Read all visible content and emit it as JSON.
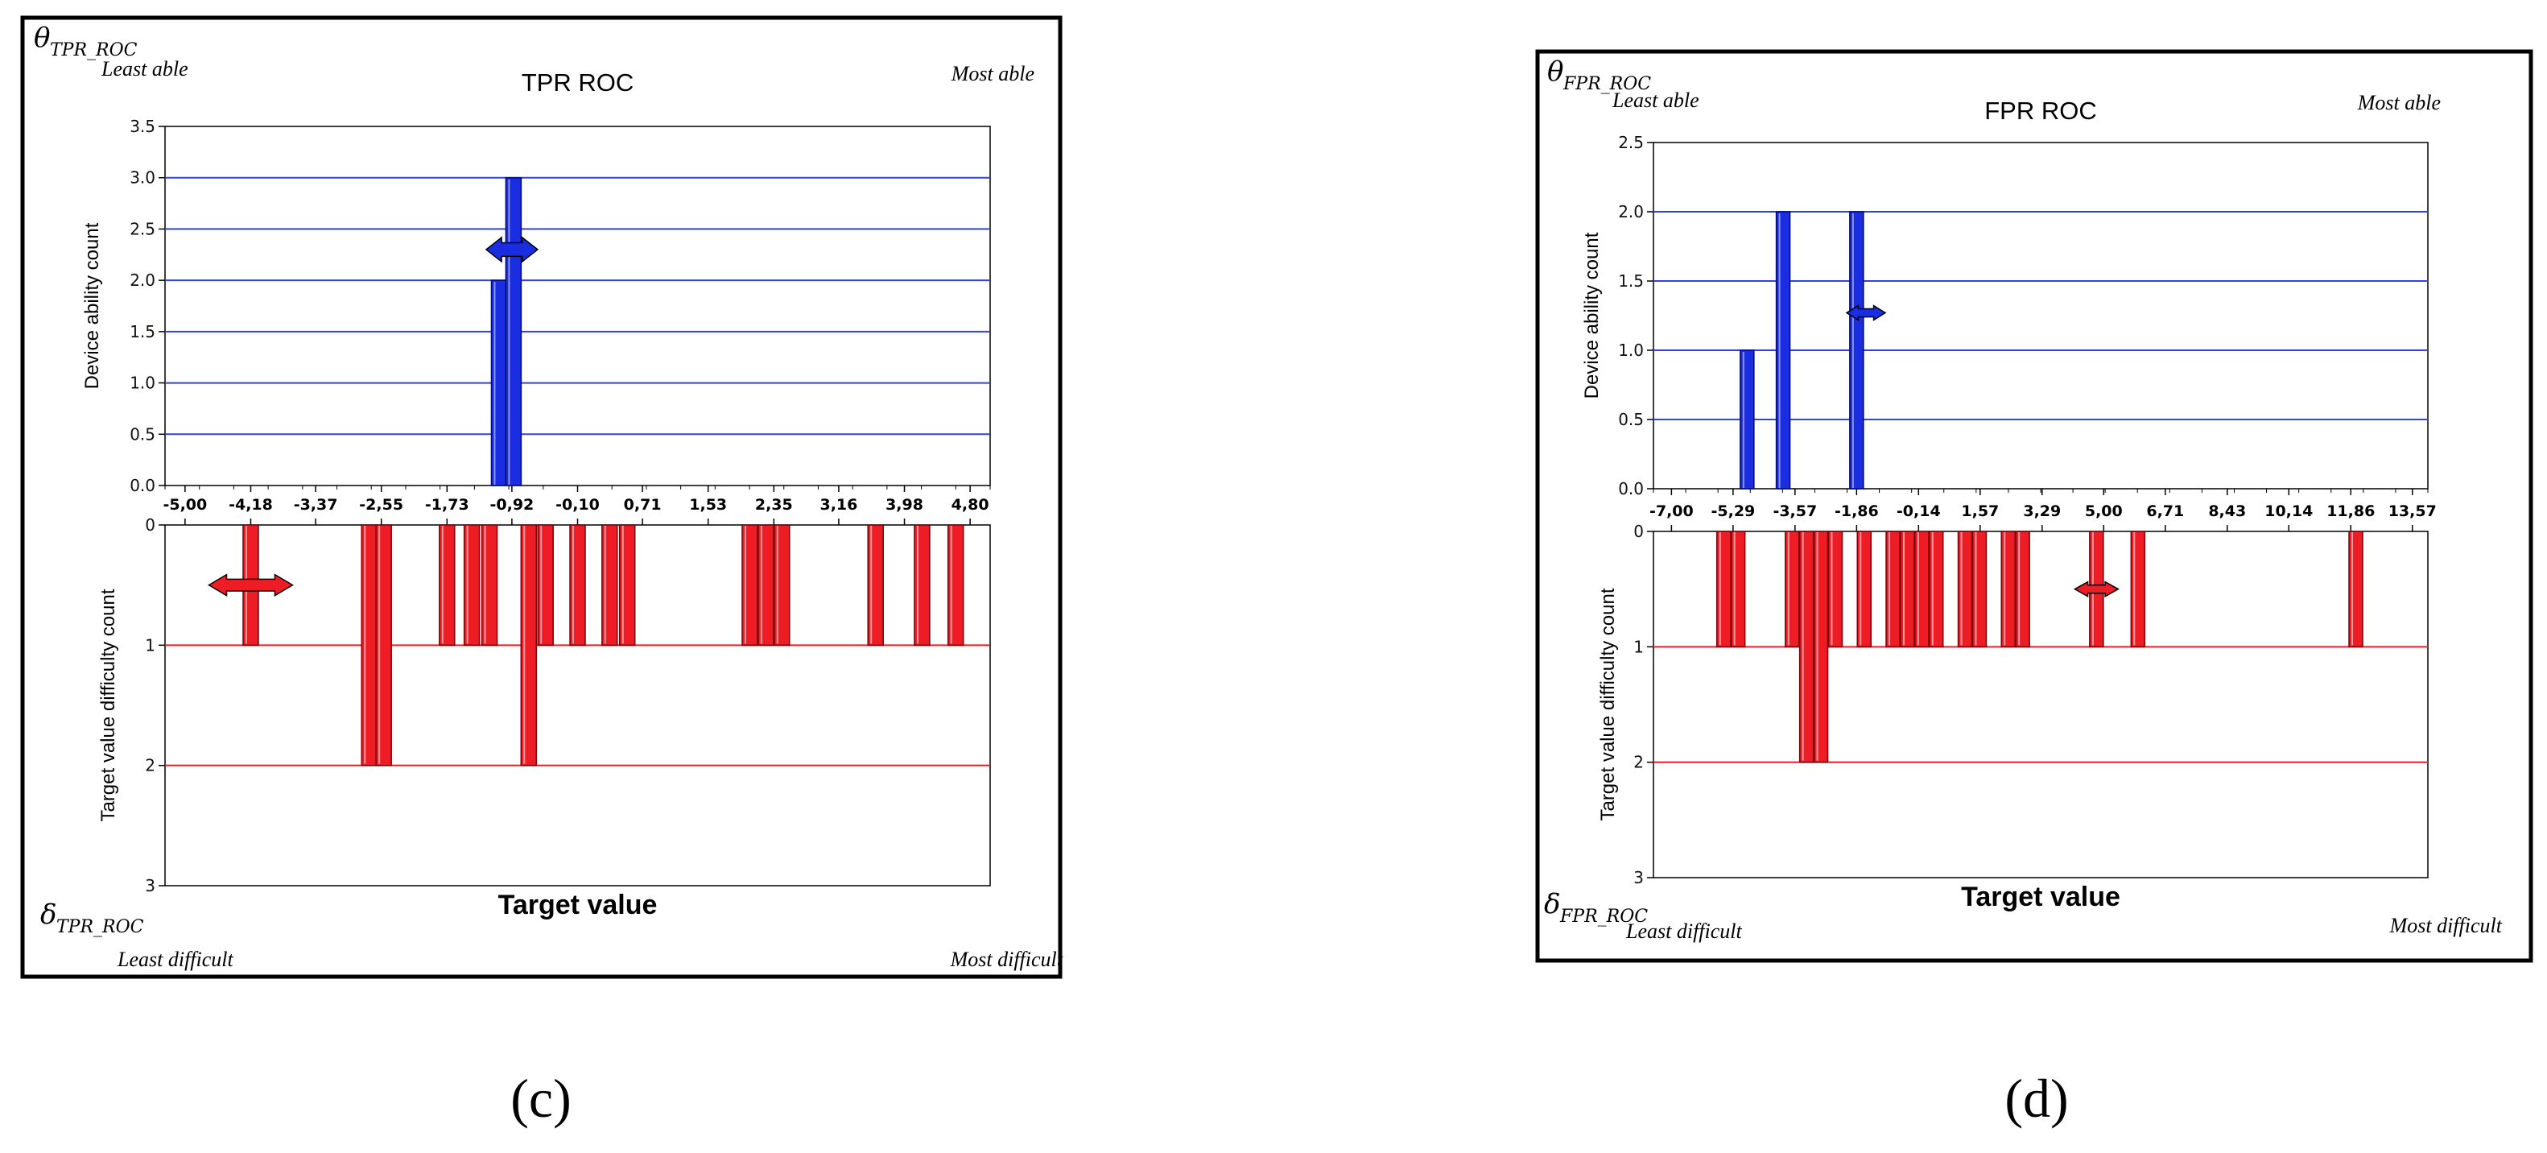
{
  "colors": {
    "ability": "#1a2de0",
    "difficulty": "#ee1c24",
    "ability_grid": "#3440e6",
    "difficulty_grid": "#ee1c24"
  },
  "panels": [
    {
      "label": "(c)",
      "theta_symbol": "θ",
      "theta_sub": "TPR_ROC",
      "delta_symbol": "δ",
      "delta_sub": "TPR_ROC",
      "least_able": "Least able",
      "most_able": "Most able",
      "least_difficult": "Least difficult",
      "most_difficult": "Most difficult",
      "icons": {
        "ability_arrow": "double-arrow-icon",
        "difficulty_arrow": "double-arrow-icon"
      }
    },
    {
      "label": "(d)",
      "theta_symbol": "θ",
      "theta_sub": "FPR_ROC",
      "delta_symbol": "δ",
      "delta_sub": "FPR_ROC",
      "least_able": "Least able",
      "most_able": "Most able",
      "least_difficult": "Least difficult",
      "most_difficult": "Most difficult",
      "icons": {
        "ability_arrow": "double-arrow-icon",
        "difficulty_arrow": "double-arrow-icon"
      }
    }
  ],
  "chart_data": [
    {
      "type": "bar",
      "title": "TPR ROC",
      "xlabel": "Target value",
      "ylabel_top": "Device ability count",
      "ylabel_bottom": "Target value difficulty count",
      "xlim": [
        -5.25,
        5.05
      ],
      "x_ticks": [
        "-5,00",
        "-4,18",
        "-3,37",
        "-2,55",
        "-1,73",
        "-0,92",
        "-0,10",
        "0,71",
        "1,53",
        "2,35",
        "3,16",
        "3,98",
        "4,80"
      ],
      "y_top_ticks": [
        "0.0",
        "0.5",
        "1.0",
        "1.5",
        "2.0",
        "2.5",
        "3.0",
        "3.5"
      ],
      "y_top_lim": [
        0,
        3.5
      ],
      "y_bottom_ticks": [
        "0",
        "1",
        "2",
        "3"
      ],
      "y_bottom_lim": [
        0,
        3
      ],
      "ability_arrow_x": -0.92,
      "ability_arrow_y": 2.3,
      "difficulty_arrow_x": -4.18,
      "difficulty_arrow_y": 0.5,
      "series": [
        {
          "name": "Device ability count",
          "x": [
            -1.08,
            -0.9
          ],
          "values": [
            2,
            3
          ]
        },
        {
          "name": "Target value difficulty count",
          "x": [
            -4.18,
            -2.7,
            -2.52,
            -1.73,
            -1.42,
            -1.2,
            -0.71,
            -0.5,
            -0.1,
            0.3,
            0.52,
            2.05,
            2.25,
            2.45,
            3.62,
            4.2,
            4.62
          ],
          "values": [
            1,
            2,
            2,
            1,
            1,
            1,
            2,
            1,
            1,
            1,
            1,
            1,
            1,
            1,
            1,
            1,
            1
          ]
        }
      ]
    },
    {
      "type": "bar",
      "title": "FPR ROC",
      "xlabel": "Target value",
      "ylabel_top": "Device ability count",
      "ylabel_bottom": "Target value difficulty count",
      "xlim": [
        -7.5,
        14.0
      ],
      "x_ticks": [
        "-7,00",
        "-5,29",
        "-3,57",
        "-1,86",
        "-0,14",
        "1,57",
        "3,29",
        "5,00",
        "6,71",
        "8,43",
        "10,14",
        "11,86",
        "13,57"
      ],
      "y_top_ticks": [
        "0.0",
        "0.5",
        "1.0",
        "1.5",
        "2.0",
        "2.5"
      ],
      "y_top_lim": [
        0,
        2.5
      ],
      "y_bottom_ticks": [
        "0",
        "1",
        "2",
        "3"
      ],
      "y_bottom_lim": [
        0,
        3
      ],
      "ability_arrow_x": -1.6,
      "ability_arrow_y": 1.27,
      "difficulty_arrow_x": 4.8,
      "difficulty_arrow_y": 0.5,
      "series": [
        {
          "name": "Device ability count",
          "x": [
            -4.9,
            -3.9,
            -1.86
          ],
          "values": [
            1,
            2,
            2
          ]
        },
        {
          "name": "Target value difficulty count",
          "x": [
            -5.55,
            -5.15,
            -3.65,
            -3.25,
            -2.85,
            -2.45,
            -1.65,
            -0.85,
            -0.45,
            -0.05,
            0.35,
            1.15,
            1.55,
            2.35,
            2.75,
            4.8,
            5.95,
            12.0
          ],
          "values": [
            1,
            1,
            1,
            2,
            2,
            1,
            1,
            1,
            1,
            1,
            1,
            1,
            1,
            1,
            1,
            1,
            1,
            1
          ]
        }
      ]
    }
  ]
}
